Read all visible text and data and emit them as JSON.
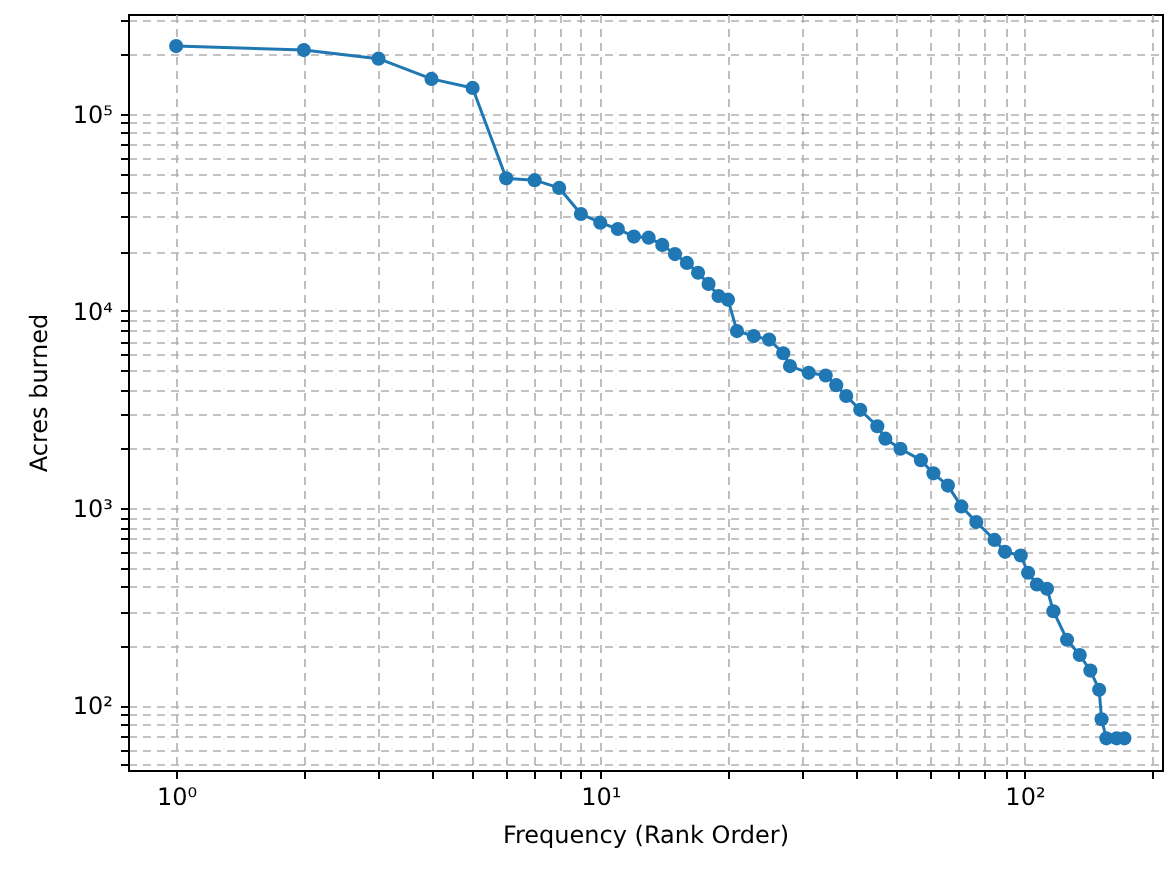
{
  "chart_data": {
    "type": "line",
    "xlabel": "Frequency (Rank Order)",
    "ylabel": "Acres burned",
    "log": "xy",
    "grid": true,
    "marker": "circle",
    "line_style": "solid",
    "xlim": [
      0.77,
      211
    ],
    "ylim": [
      47,
      320000
    ],
    "xticks": [
      {
        "value": 1,
        "label": "10⁰"
      },
      {
        "value": 2,
        "label": null
      },
      {
        "value": 3,
        "label": null
      },
      {
        "value": 4,
        "label": null
      },
      {
        "value": 5,
        "label": null
      },
      {
        "value": 6,
        "label": null
      },
      {
        "value": 7,
        "label": null
      },
      {
        "value": 8,
        "label": null
      },
      {
        "value": 9,
        "label": null
      },
      {
        "value": 10,
        "label": "10¹"
      },
      {
        "value": 20,
        "label": null
      },
      {
        "value": 30,
        "label": null
      },
      {
        "value": 40,
        "label": null
      },
      {
        "value": 50,
        "label": null
      },
      {
        "value": 60,
        "label": null
      },
      {
        "value": 70,
        "label": null
      },
      {
        "value": 80,
        "label": null
      },
      {
        "value": 90,
        "label": null
      },
      {
        "value": 100,
        "label": "10²"
      },
      {
        "value": 200,
        "label": null
      }
    ],
    "yticks": [
      {
        "value": 50,
        "label": null
      },
      {
        "value": 60,
        "label": null
      },
      {
        "value": 70,
        "label": null
      },
      {
        "value": 80,
        "label": null
      },
      {
        "value": 90,
        "label": null
      },
      {
        "value": 100,
        "label": "10²"
      },
      {
        "value": 200,
        "label": null
      },
      {
        "value": 300,
        "label": null
      },
      {
        "value": 400,
        "label": null
      },
      {
        "value": 500,
        "label": null
      },
      {
        "value": 600,
        "label": null
      },
      {
        "value": 700,
        "label": null
      },
      {
        "value": 800,
        "label": null
      },
      {
        "value": 900,
        "label": null
      },
      {
        "value": 1000,
        "label": "10³"
      },
      {
        "value": 2000,
        "label": null
      },
      {
        "value": 3000,
        "label": null
      },
      {
        "value": 4000,
        "label": null
      },
      {
        "value": 5000,
        "label": null
      },
      {
        "value": 6000,
        "label": null
      },
      {
        "value": 7000,
        "label": null
      },
      {
        "value": 8000,
        "label": null
      },
      {
        "value": 9000,
        "label": null
      },
      {
        "value": 10000,
        "label": "10⁴"
      },
      {
        "value": 20000,
        "label": null
      },
      {
        "value": 30000,
        "label": null
      },
      {
        "value": 40000,
        "label": null
      },
      {
        "value": 50000,
        "label": null
      },
      {
        "value": 60000,
        "label": null
      },
      {
        "value": 70000,
        "label": null
      },
      {
        "value": 80000,
        "label": null
      },
      {
        "value": 90000,
        "label": null
      },
      {
        "value": 100000,
        "label": "10⁵"
      },
      {
        "value": 200000,
        "label": null
      },
      {
        "value": 300000,
        "label": null
      }
    ],
    "series": [
      {
        "color": "#1f77b4",
        "x": [
          1,
          2,
          3,
          4,
          5,
          6,
          7,
          8,
          9,
          10,
          11,
          12,
          13,
          14,
          15,
          16,
          17,
          18,
          19,
          20,
          21,
          23,
          25,
          27,
          28,
          31,
          34,
          36,
          38,
          41,
          45,
          47,
          51,
          57,
          61,
          66,
          71,
          77,
          85,
          90,
          98,
          102,
          107,
          113,
          117,
          126,
          135,
          143,
          150,
          152,
          156,
          165,
          172
        ],
        "values": [
          220000,
          210000,
          190000,
          150000,
          135000,
          47000,
          46000,
          42000,
          31000,
          28000,
          26000,
          23800,
          23500,
          21600,
          19400,
          17500,
          15600,
          13700,
          11900,
          11400,
          7900,
          7450,
          7150,
          6100,
          5250,
          4850,
          4700,
          4200,
          3700,
          3150,
          2600,
          2250,
          2000,
          1750,
          1500,
          1300,
          1020,
          850,
          690,
          600,
          575,
          470,
          410,
          390,
          300,
          215,
          180,
          150,
          120,
          85,
          68,
          68,
          68
        ]
      }
    ]
  }
}
